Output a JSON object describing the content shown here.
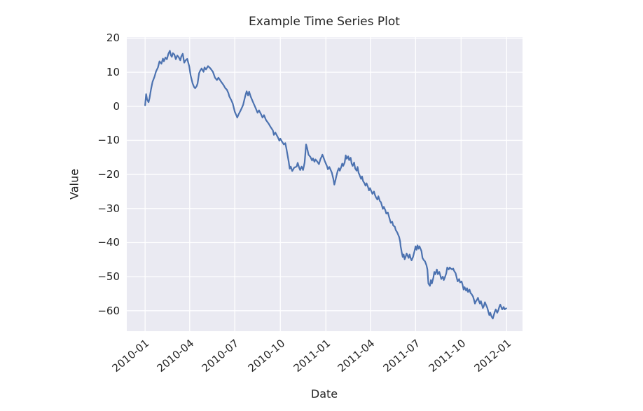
{
  "figure": {
    "background": "#ffffff"
  },
  "chart_data": {
    "type": "line",
    "title": "Example Time Series Plot",
    "xlabel": "Date",
    "ylabel": "Value",
    "legend": null,
    "grid": true,
    "plot_background": "#eaeaf2",
    "grid_color": "#ffffff",
    "line_color": "#4c72b0",
    "text_color": "#262626",
    "ylim": [
      -66,
      20.3
    ],
    "xlim": [
      "2009-11-25",
      "2012-02-02"
    ],
    "yticks": [
      20,
      10,
      0,
      -10,
      -20,
      -30,
      -40,
      -50,
      -60
    ],
    "xticks": [
      {
        "label": "2010-01",
        "date": "2010-01-01"
      },
      {
        "label": "2010-04",
        "date": "2010-04-01"
      },
      {
        "label": "2010-07",
        "date": "2010-07-01"
      },
      {
        "label": "2010-10",
        "date": "2010-10-01"
      },
      {
        "label": "2011-01",
        "date": "2011-01-01"
      },
      {
        "label": "2011-04",
        "date": "2011-04-01"
      },
      {
        "label": "2011-07",
        "date": "2011-07-01"
      },
      {
        "label": "2011-10",
        "date": "2011-10-01"
      },
      {
        "label": "2012-01",
        "date": "2012-01-01"
      }
    ],
    "series_name": "value",
    "points": [
      [
        "2010-01-01",
        0.3
      ],
      [
        "2010-01-03",
        3.6
      ],
      [
        "2010-01-05",
        2.0
      ],
      [
        "2010-01-08",
        1.2
      ],
      [
        "2010-01-10",
        2.4
      ],
      [
        "2010-01-13",
        5.0
      ],
      [
        "2010-01-16",
        7.2
      ],
      [
        "2010-01-20",
        8.7
      ],
      [
        "2010-01-23",
        10.2
      ],
      [
        "2010-01-27",
        11.4
      ],
      [
        "2010-01-30",
        13.2
      ],
      [
        "2010-02-03",
        12.5
      ],
      [
        "2010-02-06",
        14.0
      ],
      [
        "2010-02-08",
        13.2
      ],
      [
        "2010-02-11",
        14.3
      ],
      [
        "2010-02-14",
        13.8
      ],
      [
        "2010-02-17",
        15.4
      ],
      [
        "2010-02-20",
        16.3
      ],
      [
        "2010-02-22",
        15.0
      ],
      [
        "2010-02-24",
        14.5
      ],
      [
        "2010-02-26",
        15.6
      ],
      [
        "2010-03-01",
        15.2
      ],
      [
        "2010-03-04",
        13.8
      ],
      [
        "2010-03-07",
        14.9
      ],
      [
        "2010-03-10",
        14.4
      ],
      [
        "2010-03-13",
        13.5
      ],
      [
        "2010-03-15",
        14.6
      ],
      [
        "2010-03-18",
        15.4
      ],
      [
        "2010-03-21",
        12.8
      ],
      [
        "2010-03-24",
        13.5
      ],
      [
        "2010-03-27",
        13.9
      ],
      [
        "2010-03-31",
        11.8
      ],
      [
        "2010-04-03",
        9.0
      ],
      [
        "2010-04-07",
        6.7
      ],
      [
        "2010-04-10",
        5.6
      ],
      [
        "2010-04-12",
        5.3
      ],
      [
        "2010-04-15",
        5.9
      ],
      [
        "2010-04-17",
        6.7
      ],
      [
        "2010-04-20",
        9.7
      ],
      [
        "2010-04-22",
        10.4
      ],
      [
        "2010-04-25",
        11.1
      ],
      [
        "2010-04-29",
        10.1
      ],
      [
        "2010-05-01",
        11.4
      ],
      [
        "2010-05-04",
        10.8
      ],
      [
        "2010-05-08",
        11.8
      ],
      [
        "2010-05-13",
        11.1
      ],
      [
        "2010-05-18",
        10.1
      ],
      [
        "2010-05-22",
        8.4
      ],
      [
        "2010-05-26",
        7.7
      ],
      [
        "2010-05-29",
        8.4
      ],
      [
        "2010-06-03",
        7.3
      ],
      [
        "2010-06-08",
        6.3
      ],
      [
        "2010-06-12",
        5.3
      ],
      [
        "2010-06-15",
        4.9
      ],
      [
        "2010-06-18",
        3.9
      ],
      [
        "2010-06-20",
        2.9
      ],
      [
        "2010-06-24",
        1.8
      ],
      [
        "2010-06-27",
        0.8
      ],
      [
        "2010-07-01",
        -1.6
      ],
      [
        "2010-07-04",
        -2.6
      ],
      [
        "2010-07-06",
        -3.3
      ],
      [
        "2010-07-09",
        -2.3
      ],
      [
        "2010-07-13",
        -1.2
      ],
      [
        "2010-07-16",
        -0.2
      ],
      [
        "2010-07-18",
        0.5
      ],
      [
        "2010-07-22",
        2.9
      ],
      [
        "2010-07-25",
        4.4
      ],
      [
        "2010-07-28",
        3.2
      ],
      [
        "2010-07-30",
        4.3
      ],
      [
        "2010-08-02",
        2.9
      ],
      [
        "2010-08-07",
        1.2
      ],
      [
        "2010-08-12",
        -0.5
      ],
      [
        "2010-08-16",
        -1.9
      ],
      [
        "2010-08-19",
        -1.2
      ],
      [
        "2010-08-23",
        -2.3
      ],
      [
        "2010-08-26",
        -3.3
      ],
      [
        "2010-08-29",
        -2.6
      ],
      [
        "2010-09-02",
        -4.0
      ],
      [
        "2010-09-07",
        -5.0
      ],
      [
        "2010-09-11",
        -6.0
      ],
      [
        "2010-09-16",
        -7.1
      ],
      [
        "2010-09-18",
        -8.4
      ],
      [
        "2010-09-21",
        -7.7
      ],
      [
        "2010-09-26",
        -9.1
      ],
      [
        "2010-09-29",
        -10.1
      ],
      [
        "2010-10-01",
        -9.5
      ],
      [
        "2010-10-05",
        -10.5
      ],
      [
        "2010-10-08",
        -11.2
      ],
      [
        "2010-10-11",
        -10.8
      ],
      [
        "2010-10-13",
        -12.2
      ],
      [
        "2010-10-18",
        -16.3
      ],
      [
        "2010-10-20",
        -18.3
      ],
      [
        "2010-10-22",
        -17.7
      ],
      [
        "2010-10-25",
        -19.0
      ],
      [
        "2010-10-29",
        -18.0
      ],
      [
        "2010-11-03",
        -17.7
      ],
      [
        "2010-11-05",
        -16.6
      ],
      [
        "2010-11-08",
        -18.0
      ],
      [
        "2010-11-10",
        -18.7
      ],
      [
        "2010-11-13",
        -17.7
      ],
      [
        "2010-11-16",
        -18.7
      ],
      [
        "2010-11-19",
        -16.5
      ],
      [
        "2010-11-22",
        -11.2
      ],
      [
        "2010-11-24",
        -12.2
      ],
      [
        "2010-11-27",
        -14.2
      ],
      [
        "2010-12-01",
        -14.9
      ],
      [
        "2010-12-04",
        -15.9
      ],
      [
        "2010-12-06",
        -15.3
      ],
      [
        "2010-12-09",
        -16.3
      ],
      [
        "2010-12-11",
        -15.6
      ],
      [
        "2010-12-15",
        -16.3
      ],
      [
        "2010-12-18",
        -17.0
      ],
      [
        "2010-12-21",
        -15.5
      ],
      [
        "2010-12-23",
        -14.9
      ],
      [
        "2010-12-25",
        -14.2
      ],
      [
        "2010-12-28",
        -15.3
      ],
      [
        "2010-12-30",
        -16.2
      ],
      [
        "2011-01-03",
        -17.5
      ],
      [
        "2011-01-05",
        -18.5
      ],
      [
        "2011-01-08",
        -17.8
      ],
      [
        "2011-01-13",
        -19.5
      ],
      [
        "2011-01-16",
        -21.3
      ],
      [
        "2011-01-18",
        -23.0
      ],
      [
        "2011-01-20",
        -21.9
      ],
      [
        "2011-01-22",
        -20.6
      ],
      [
        "2011-01-25",
        -18.9
      ],
      [
        "2011-01-27",
        -18.2
      ],
      [
        "2011-01-29",
        -18.9
      ],
      [
        "2011-02-01",
        -17.8
      ],
      [
        "2011-02-03",
        -16.8
      ],
      [
        "2011-02-05",
        -17.5
      ],
      [
        "2011-02-08",
        -16.5
      ],
      [
        "2011-02-10",
        -14.4
      ],
      [
        "2011-02-12",
        -15.4
      ],
      [
        "2011-02-15",
        -14.7
      ],
      [
        "2011-02-17",
        -15.8
      ],
      [
        "2011-02-20",
        -15.1
      ],
      [
        "2011-02-22",
        -16.8
      ],
      [
        "2011-02-24",
        -17.5
      ],
      [
        "2011-02-27",
        -16.5
      ],
      [
        "2011-03-01",
        -18.2
      ],
      [
        "2011-03-04",
        -18.9
      ],
      [
        "2011-03-06",
        -17.8
      ],
      [
        "2011-03-08",
        -19.5
      ],
      [
        "2011-03-10",
        -20.2
      ],
      [
        "2011-03-13",
        -21.3
      ],
      [
        "2011-03-15",
        -20.6
      ],
      [
        "2011-03-17",
        -21.9
      ],
      [
        "2011-03-20",
        -22.6
      ],
      [
        "2011-03-22",
        -23.3
      ],
      [
        "2011-03-24",
        -22.6
      ],
      [
        "2011-03-27",
        -23.7
      ],
      [
        "2011-03-29",
        -24.7
      ],
      [
        "2011-03-31",
        -24.0
      ],
      [
        "2011-04-03",
        -25.0
      ],
      [
        "2011-04-05",
        -25.7
      ],
      [
        "2011-04-08",
        -25.0
      ],
      [
        "2011-04-10",
        -26.0
      ],
      [
        "2011-04-12",
        -26.7
      ],
      [
        "2011-04-15",
        -27.4
      ],
      [
        "2011-04-17",
        -26.4
      ],
      [
        "2011-04-20",
        -27.8
      ],
      [
        "2011-04-22",
        -28.1
      ],
      [
        "2011-04-24",
        -29.1
      ],
      [
        "2011-04-26",
        -30.1
      ],
      [
        "2011-04-28",
        -29.5
      ],
      [
        "2011-05-01",
        -30.5
      ],
      [
        "2011-05-03",
        -31.5
      ],
      [
        "2011-05-06",
        -31.2
      ],
      [
        "2011-05-08",
        -32.2
      ],
      [
        "2011-05-10",
        -33.2
      ],
      [
        "2011-05-12",
        -34.2
      ],
      [
        "2011-05-15",
        -33.9
      ],
      [
        "2011-05-17",
        -35.0
      ],
      [
        "2011-05-20",
        -35.3
      ],
      [
        "2011-05-22",
        -36.3
      ],
      [
        "2011-05-25",
        -37.0
      ],
      [
        "2011-05-27",
        -37.7
      ],
      [
        "2011-05-29",
        -38.4
      ],
      [
        "2011-05-31",
        -39.7
      ],
      [
        "2011-06-01",
        -41.1
      ],
      [
        "2011-06-03",
        -42.8
      ],
      [
        "2011-06-05",
        -44.2
      ],
      [
        "2011-06-07",
        -43.5
      ],
      [
        "2011-06-09",
        -44.9
      ],
      [
        "2011-06-11",
        -44.2
      ],
      [
        "2011-06-13",
        -43.2
      ],
      [
        "2011-06-15",
        -43.8
      ],
      [
        "2011-06-17",
        -44.5
      ],
      [
        "2011-06-19",
        -43.5
      ],
      [
        "2011-06-21",
        -44.5
      ],
      [
        "2011-06-23",
        -45.2
      ],
      [
        "2011-06-26",
        -44.2
      ],
      [
        "2011-06-29",
        -42.5
      ],
      [
        "2011-07-01",
        -41.1
      ],
      [
        "2011-07-03",
        -42.1
      ],
      [
        "2011-07-05",
        -40.8
      ],
      [
        "2011-07-07",
        -41.8
      ],
      [
        "2011-07-09",
        -41.1
      ],
      [
        "2011-07-11",
        -41.8
      ],
      [
        "2011-07-13",
        -42.5
      ],
      [
        "2011-07-15",
        -44.5
      ],
      [
        "2011-07-18",
        -45.2
      ],
      [
        "2011-07-20",
        -45.5
      ],
      [
        "2011-07-23",
        -46.6
      ],
      [
        "2011-07-25",
        -47.9
      ],
      [
        "2011-07-27",
        -52.0
      ],
      [
        "2011-07-30",
        -52.7
      ],
      [
        "2011-08-01",
        -51.0
      ],
      [
        "2011-08-03",
        -52.0
      ],
      [
        "2011-08-06",
        -50.3
      ],
      [
        "2011-08-08",
        -48.6
      ],
      [
        "2011-08-10",
        -49.3
      ],
      [
        "2011-08-13",
        -47.9
      ],
      [
        "2011-08-15",
        -49.3
      ],
      [
        "2011-08-18",
        -48.6
      ],
      [
        "2011-08-20",
        -49.6
      ],
      [
        "2011-08-22",
        -50.7
      ],
      [
        "2011-08-25",
        -50.0
      ],
      [
        "2011-08-27",
        -51.0
      ],
      [
        "2011-08-29",
        -50.3
      ],
      [
        "2011-09-01",
        -49.0
      ],
      [
        "2011-09-03",
        -47.3
      ],
      [
        "2011-09-06",
        -47.9
      ],
      [
        "2011-09-08",
        -47.3
      ],
      [
        "2011-09-10",
        -47.6
      ],
      [
        "2011-09-13",
        -47.9
      ],
      [
        "2011-09-15",
        -47.6
      ],
      [
        "2011-09-17",
        -48.3
      ],
      [
        "2011-09-20",
        -49.0
      ],
      [
        "2011-09-22",
        -50.3
      ],
      [
        "2011-09-24",
        -51.4
      ],
      [
        "2011-09-27",
        -50.7
      ],
      [
        "2011-09-29",
        -51.7
      ],
      [
        "2011-10-02",
        -51.4
      ],
      [
        "2011-10-04",
        -52.4
      ],
      [
        "2011-10-06",
        -53.8
      ],
      [
        "2011-10-08",
        -53.1
      ],
      [
        "2011-10-11",
        -54.1
      ],
      [
        "2011-10-13",
        -53.4
      ],
      [
        "2011-10-15",
        -54.5
      ],
      [
        "2011-10-18",
        -53.8
      ],
      [
        "2011-10-20",
        -54.8
      ],
      [
        "2011-10-22",
        -55.1
      ],
      [
        "2011-10-25",
        -55.8
      ],
      [
        "2011-10-27",
        -56.8
      ],
      [
        "2011-10-29",
        -57.9
      ],
      [
        "2011-10-31",
        -57.2
      ],
      [
        "2011-11-02",
        -56.8
      ],
      [
        "2011-11-04",
        -56.2
      ],
      [
        "2011-11-06",
        -57.2
      ],
      [
        "2011-11-08",
        -57.9
      ],
      [
        "2011-11-10",
        -57.2
      ],
      [
        "2011-11-12",
        -58.2
      ],
      [
        "2011-11-14",
        -59.2
      ],
      [
        "2011-11-16",
        -58.6
      ],
      [
        "2011-11-18",
        -57.5
      ],
      [
        "2011-11-20",
        -58.2
      ],
      [
        "2011-11-23",
        -59.2
      ],
      [
        "2011-11-25",
        -60.3
      ],
      [
        "2011-11-27",
        -61.3
      ],
      [
        "2011-11-29",
        -60.6
      ],
      [
        "2011-12-01",
        -61.6
      ],
      [
        "2011-12-04",
        -62.3
      ],
      [
        "2011-12-06",
        -61.3
      ],
      [
        "2011-12-08",
        -60.3
      ],
      [
        "2011-12-10",
        -59.6
      ],
      [
        "2011-12-13",
        -60.6
      ],
      [
        "2011-12-15",
        -59.9
      ],
      [
        "2011-12-17",
        -58.9
      ],
      [
        "2011-12-19",
        -58.2
      ],
      [
        "2011-12-21",
        -58.9
      ],
      [
        "2011-12-23",
        -59.6
      ],
      [
        "2011-12-26",
        -58.9
      ],
      [
        "2011-12-28",
        -59.6
      ],
      [
        "2011-12-31",
        -59.3
      ]
    ]
  }
}
